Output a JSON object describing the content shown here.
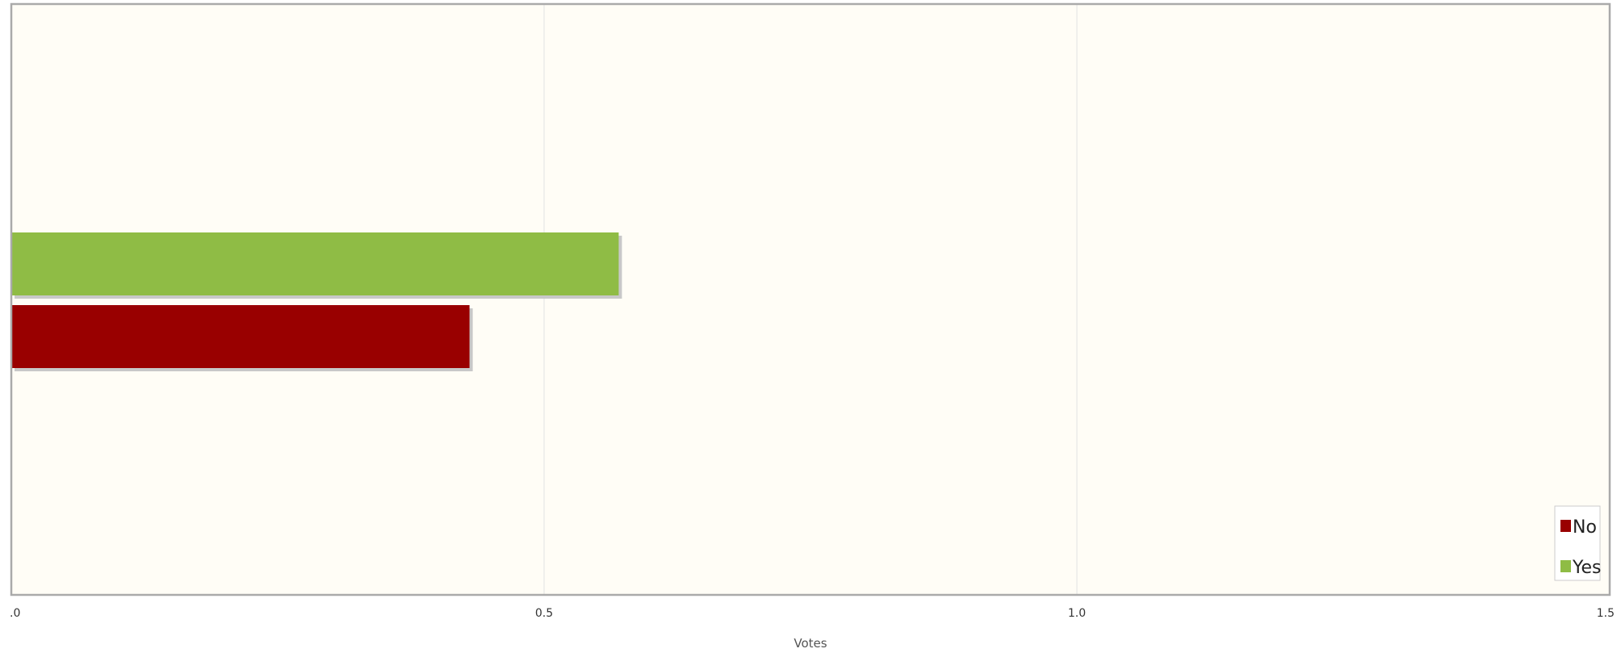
{
  "chart_data": {
    "type": "bar",
    "orientation": "horizontal",
    "title": "",
    "xlabel": "Votes",
    "ylabel": "",
    "xlim": [
      0,
      1.5
    ],
    "x_ticks": [
      0,
      0.5,
      1.0,
      1.5
    ],
    "x_tick_labels": [
      ".0",
      "0.5",
      "1.0",
      "1.5"
    ],
    "grid": true,
    "legend_position": "bottom-right",
    "series": [
      {
        "name": "Yes",
        "value": 0.57,
        "color": "#8fbc45"
      },
      {
        "name": "No",
        "value": 0.43,
        "color": "#990000"
      }
    ],
    "legend": [
      {
        "name": "No",
        "color": "#990000"
      },
      {
        "name": "Yes",
        "color": "#8fbc45"
      }
    ],
    "colors": {
      "plot_background": "#fffdf6",
      "frame": "#aaaaaa",
      "grid": "#e2e2e2",
      "shadow": "#c8c8c8"
    }
  }
}
